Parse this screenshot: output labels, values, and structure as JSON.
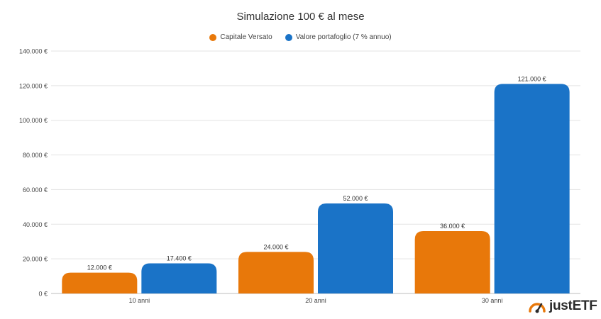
{
  "chart_data": {
    "type": "bar",
    "title": "Simulazione 100 € al mese",
    "categories": [
      "10 anni",
      "20 anni",
      "30 anni"
    ],
    "series": [
      {
        "name": "Capitale Versato",
        "color": "#e8780a",
        "values": [
          12000,
          24000,
          36000
        ],
        "labels": [
          "12.000 €",
          "24.000 €",
          "36.000 €"
        ]
      },
      {
        "name": "Valore portafoglio (7 % annuo)",
        "color": "#1a73c7",
        "values": [
          17400,
          52000,
          121000
        ],
        "labels": [
          "17.400 €",
          "52.000 €",
          "121.000 €"
        ]
      }
    ],
    "ylim": [
      0,
      140000
    ],
    "yticks": [
      0,
      20000,
      40000,
      60000,
      80000,
      100000,
      120000,
      140000
    ],
    "ytick_labels": [
      "0 €",
      "20.000 €",
      "40.000 €",
      "60.000 €",
      "80.000 €",
      "100.000 €",
      "120.000 €",
      "140.000 €"
    ],
    "xlabel": "",
    "ylabel": "",
    "grid": true,
    "legend_position": "top-center"
  },
  "logo": {
    "text_a": "just",
    "text_b": "ETF",
    "icon": "speedometer-icon",
    "color": "#e8780a"
  }
}
